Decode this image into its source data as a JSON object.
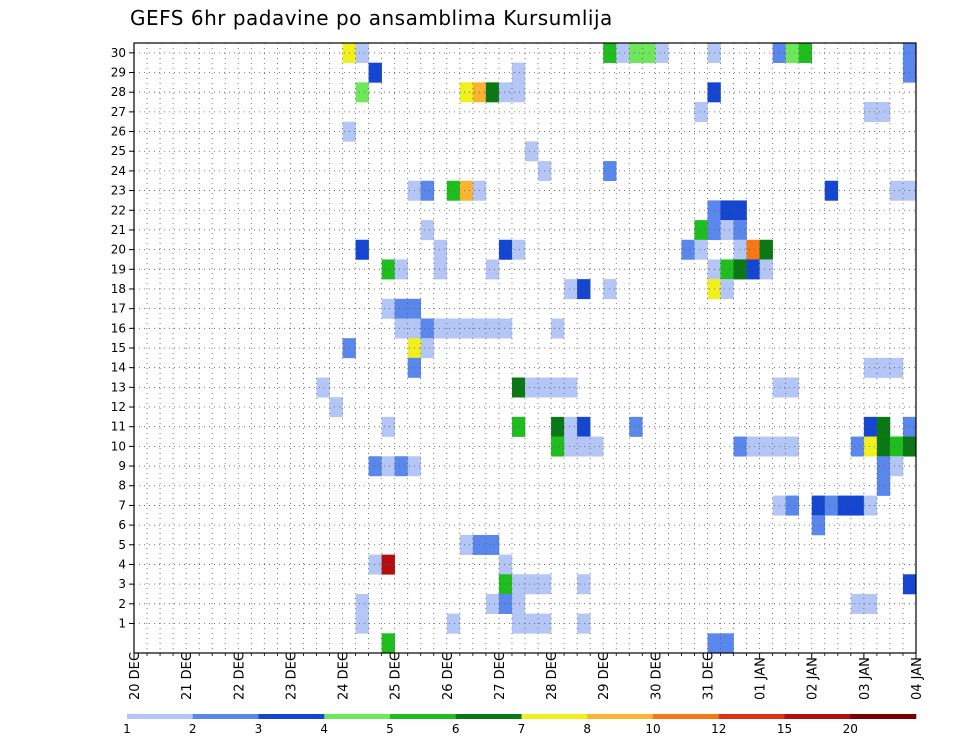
{
  "chart_data": {
    "type": "heatmap",
    "title": "GEFS 6hr padavine po ansamblima Kursumlija",
    "xlabel": "",
    "ylabel": "",
    "x_ticks": [
      "20 DEC",
      "21 DEC",
      "22 DEC",
      "23 DEC",
      "24 DEC",
      "25 DEC",
      "26 DEC",
      "27 DEC",
      "28 DEC",
      "29 DEC",
      "30 DEC",
      "31 DEC",
      "01 JAN",
      "02 JAN",
      "03 JAN",
      "04 JAN"
    ],
    "x_range_steps": [
      0,
      60
    ],
    "y_ticks": [
      1,
      2,
      3,
      4,
      5,
      6,
      7,
      8,
      9,
      10,
      11,
      12,
      13,
      14,
      15,
      16,
      17,
      18,
      19,
      20,
      21,
      22,
      23,
      24,
      25,
      26,
      27,
      28,
      29,
      30
    ],
    "y_range": [
      0,
      30
    ],
    "grid": true,
    "colorbar": {
      "labels": [
        "1",
        "2",
        "3",
        "4",
        "5",
        "6",
        "7",
        "8",
        "10",
        "12",
        "15",
        "20"
      ],
      "colors": [
        "#b4c6f5",
        "#5a87eb",
        "#1446d2",
        "#6ee85a",
        "#1ebe1e",
        "#0a7814",
        "#f0f01e",
        "#fab432",
        "#f57814",
        "#dc3214",
        "#b40f0f",
        "#780000"
      ]
    },
    "cells_note": "Each cell: [member, time_step_index (6h steps from 20 DEC 00UTC), color_class 0-11]",
    "cells": [
      [
        30,
        16,
        6
      ],
      [
        30,
        17,
        0
      ],
      [
        30,
        36,
        4
      ],
      [
        30,
        37,
        0
      ],
      [
        30,
        38,
        3
      ],
      [
        30,
        39,
        3
      ],
      [
        30,
        40,
        0
      ],
      [
        30,
        44,
        0
      ],
      [
        30,
        49,
        1
      ],
      [
        30,
        50,
        3
      ],
      [
        30,
        51,
        4
      ],
      [
        30,
        59,
        1
      ],
      [
        29,
        18,
        2
      ],
      [
        29,
        29,
        0
      ],
      [
        29,
        59,
        1
      ],
      [
        28,
        17,
        3
      ],
      [
        28,
        25,
        6
      ],
      [
        28,
        26,
        7
      ],
      [
        28,
        27,
        5
      ],
      [
        28,
        28,
        0
      ],
      [
        28,
        29,
        0
      ],
      [
        28,
        44,
        2
      ],
      [
        27,
        43,
        0
      ],
      [
        27,
        56,
        0
      ],
      [
        27,
        57,
        0
      ],
      [
        26,
        16,
        0
      ],
      [
        25,
        30,
        0
      ],
      [
        24,
        31,
        0
      ],
      [
        24,
        36,
        1
      ],
      [
        23,
        21,
        0
      ],
      [
        23,
        22,
        1
      ],
      [
        23,
        24,
        4
      ],
      [
        23,
        25,
        7
      ],
      [
        23,
        26,
        0
      ],
      [
        23,
        53,
        2
      ],
      [
        23,
        58,
        0
      ],
      [
        23,
        59,
        0
      ],
      [
        22,
        44,
        1
      ],
      [
        22,
        45,
        2
      ],
      [
        22,
        46,
        2
      ],
      [
        21,
        22,
        0
      ],
      [
        21,
        43,
        4
      ],
      [
        21,
        44,
        1
      ],
      [
        21,
        45,
        0
      ],
      [
        21,
        46,
        1
      ],
      [
        20,
        17,
        2
      ],
      [
        20,
        23,
        0
      ],
      [
        20,
        28,
        2
      ],
      [
        20,
        29,
        0
      ],
      [
        20,
        42,
        1
      ],
      [
        20,
        43,
        0
      ],
      [
        20,
        46,
        0
      ],
      [
        20,
        47,
        8
      ],
      [
        20,
        48,
        5
      ],
      [
        19,
        19,
        4
      ],
      [
        19,
        20,
        0
      ],
      [
        19,
        23,
        0
      ],
      [
        19,
        27,
        0
      ],
      [
        19,
        44,
        0
      ],
      [
        19,
        45,
        4
      ],
      [
        19,
        46,
        5
      ],
      [
        19,
        47,
        2
      ],
      [
        19,
        48,
        0
      ],
      [
        18,
        33,
        0
      ],
      [
        18,
        34,
        2
      ],
      [
        18,
        36,
        0
      ],
      [
        18,
        44,
        6
      ],
      [
        18,
        45,
        0
      ],
      [
        17,
        19,
        0
      ],
      [
        17,
        20,
        1
      ],
      [
        17,
        21,
        1
      ],
      [
        16,
        20,
        0
      ],
      [
        16,
        21,
        0
      ],
      [
        16,
        22,
        1
      ],
      [
        16,
        23,
        0
      ],
      [
        16,
        24,
        0
      ],
      [
        16,
        25,
        0
      ],
      [
        16,
        26,
        0
      ],
      [
        16,
        27,
        0
      ],
      [
        16,
        28,
        0
      ],
      [
        16,
        32,
        0
      ],
      [
        15,
        16,
        1
      ],
      [
        15,
        21,
        6
      ],
      [
        15,
        22,
        0
      ],
      [
        14,
        21,
        1
      ],
      [
        14,
        56,
        0
      ],
      [
        14,
        57,
        0
      ],
      [
        14,
        58,
        0
      ],
      [
        13,
        14,
        0
      ],
      [
        13,
        29,
        5
      ],
      [
        13,
        30,
        0
      ],
      [
        13,
        31,
        0
      ],
      [
        13,
        32,
        0
      ],
      [
        13,
        33,
        0
      ],
      [
        13,
        49,
        0
      ],
      [
        13,
        50,
        0
      ],
      [
        12,
        15,
        0
      ],
      [
        11,
        19,
        0
      ],
      [
        11,
        29,
        4
      ],
      [
        11,
        32,
        5
      ],
      [
        11,
        33,
        0
      ],
      [
        11,
        34,
        2
      ],
      [
        11,
        38,
        1
      ],
      [
        11,
        56,
        2
      ],
      [
        11,
        57,
        5
      ],
      [
        11,
        59,
        1
      ],
      [
        10,
        32,
        4
      ],
      [
        10,
        33,
        0
      ],
      [
        10,
        34,
        0
      ],
      [
        10,
        35,
        0
      ],
      [
        10,
        46,
        1
      ],
      [
        10,
        47,
        0
      ],
      [
        10,
        48,
        0
      ],
      [
        10,
        49,
        0
      ],
      [
        10,
        50,
        0
      ],
      [
        10,
        55,
        1
      ],
      [
        10,
        56,
        6
      ],
      [
        10,
        57,
        5
      ],
      [
        10,
        58,
        4
      ],
      [
        10,
        59,
        5
      ],
      [
        9,
        18,
        1
      ],
      [
        9,
        19,
        0
      ],
      [
        9,
        20,
        1
      ],
      [
        9,
        21,
        0
      ],
      [
        9,
        57,
        1
      ],
      [
        9,
        58,
        0
      ],
      [
        8,
        57,
        1
      ],
      [
        7,
        49,
        0
      ],
      [
        7,
        50,
        1
      ],
      [
        7,
        52,
        2
      ],
      [
        7,
        53,
        1
      ],
      [
        7,
        54,
        2
      ],
      [
        7,
        55,
        2
      ],
      [
        7,
        56,
        0
      ],
      [
        6,
        52,
        1
      ],
      [
        5,
        25,
        0
      ],
      [
        5,
        26,
        1
      ],
      [
        5,
        27,
        1
      ],
      [
        4,
        18,
        0
      ],
      [
        4,
        19,
        10
      ],
      [
        4,
        28,
        0
      ],
      [
        3,
        28,
        4
      ],
      [
        3,
        29,
        0
      ],
      [
        3,
        30,
        0
      ],
      [
        3,
        31,
        0
      ],
      [
        3,
        34,
        0
      ],
      [
        3,
        59,
        2
      ],
      [
        2,
        17,
        0
      ],
      [
        2,
        27,
        0
      ],
      [
        2,
        28,
        1
      ],
      [
        2,
        29,
        0
      ],
      [
        2,
        55,
        0
      ],
      [
        2,
        56,
        0
      ],
      [
        1,
        17,
        0
      ],
      [
        1,
        24,
        0
      ],
      [
        1,
        29,
        0
      ],
      [
        1,
        30,
        0
      ],
      [
        1,
        31,
        0
      ],
      [
        1,
        34,
        0
      ],
      [
        0,
        19,
        4
      ],
      [
        0,
        44,
        1
      ],
      [
        0,
        45,
        1
      ]
    ]
  }
}
